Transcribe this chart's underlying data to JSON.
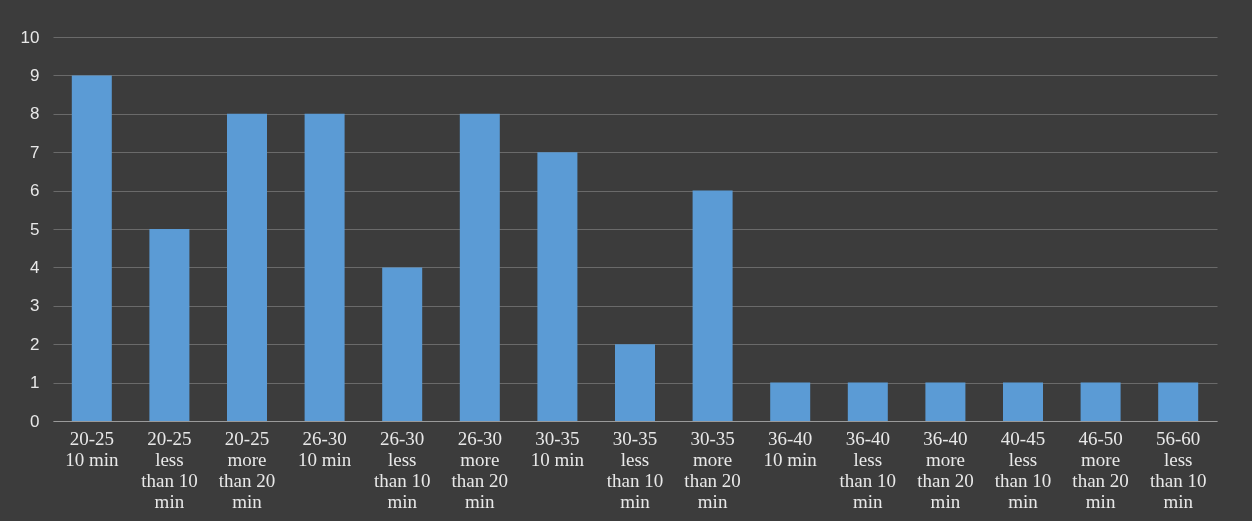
{
  "chart_data": {
    "type": "bar",
    "categories": [
      "20-25 10 min",
      "20-25 less than 10 min",
      "20-25 more than 20 min",
      "26-30 10 min",
      "26-30 less than 10 min",
      "26-30 more than 20 min",
      "30-35 10 min",
      "30-35 less than 10 min",
      "30-35 more than 20 min",
      "36-40 10 min",
      "36-40 less than 10 min",
      "36-40 more than 20 min",
      "40-45 less than 10 min",
      "46-50 more than 20 min",
      "56-60 less than 10 min"
    ],
    "values": [
      9,
      5,
      8,
      8,
      4,
      8,
      7,
      2,
      6,
      1,
      1,
      1,
      1,
      1,
      1
    ],
    "color": "#5b9bd5",
    "ylim": [
      0,
      10
    ],
    "yticks": [
      0,
      1,
      2,
      3,
      4,
      5,
      6,
      7,
      8,
      9,
      10
    ],
    "grid": "y"
  }
}
